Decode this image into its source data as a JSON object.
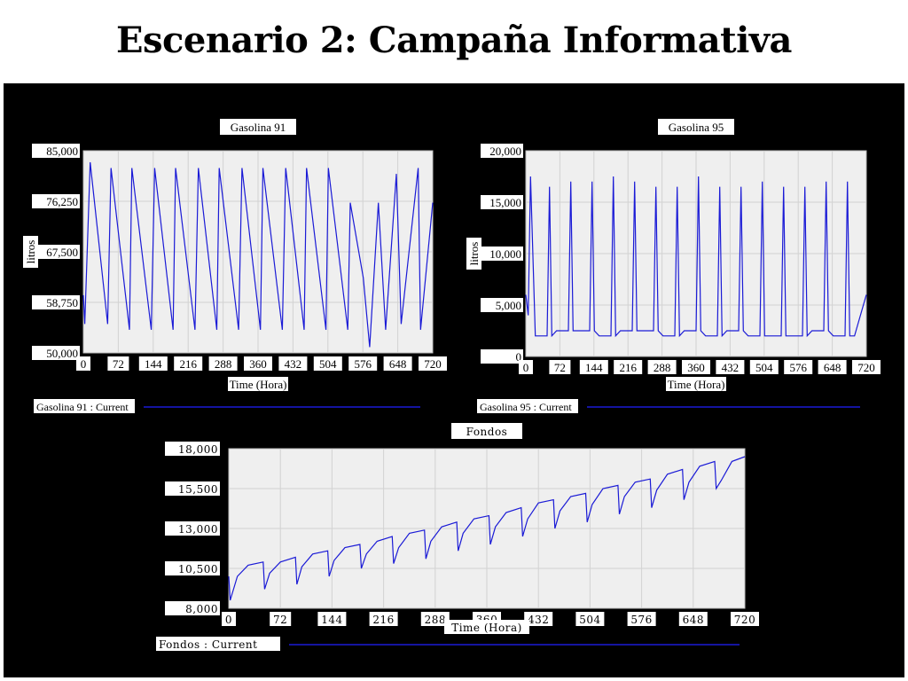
{
  "title": "Escenario 2: Campaña Informativa",
  "chart_data": [
    {
      "id": "g91",
      "type": "line",
      "title": "Gasolina 91",
      "xlabel": "Time (Hora)",
      "ylabel": "litros",
      "xlim": [
        0,
        720
      ],
      "ylim": [
        50000,
        85000
      ],
      "xticks": [
        "0",
        "72",
        "144",
        "216",
        "288",
        "360",
        "432",
        "504",
        "576",
        "648",
        "720"
      ],
      "yticks": [
        "85,000",
        "76,250",
        "67,500",
        "58,750",
        "50,000"
      ],
      "legend": "Gasolina 91 : Current",
      "series": [
        {
          "color": "#1a1ad6",
          "x": [
            0,
            3,
            14,
            50,
            57,
            95,
            100,
            140,
            147,
            185,
            190,
            230,
            237,
            275,
            280,
            320,
            327,
            365,
            370,
            410,
            417,
            455,
            460,
            500,
            505,
            545,
            550,
            577,
            590,
            608,
            623,
            645,
            655,
            690,
            695,
            720
          ],
          "y": [
            60000,
            55000,
            83000,
            55000,
            82000,
            54000,
            82000,
            54000,
            82000,
            54000,
            82000,
            54000,
            82000,
            54000,
            82000,
            54000,
            82000,
            54000,
            82000,
            54000,
            82000,
            54000,
            82000,
            54000,
            82000,
            54000,
            76000,
            63000,
            51000,
            76000,
            54000,
            81000,
            55000,
            82000,
            54000,
            76000
          ]
        }
      ]
    },
    {
      "id": "g95",
      "type": "line",
      "title": "Gasolina 95",
      "xlabel": "Time (Hora)",
      "ylabel": "litros",
      "xlim": [
        0,
        720
      ],
      "ylim": [
        0,
        20000
      ],
      "xticks": [
        "0",
        "72",
        "144",
        "216",
        "288",
        "360",
        "432",
        "504",
        "576",
        "648",
        "720"
      ],
      "yticks": [
        "20,000",
        "15,000",
        "10,000",
        "5,000",
        "0"
      ],
      "legend": "Gasolina 95 : Current",
      "series": [
        {
          "color": "#1a1ad6",
          "x": [
            0,
            5,
            10,
            20,
            45,
            50,
            55,
            65,
            90,
            95,
            100,
            110,
            135,
            140,
            145,
            155,
            180,
            185,
            190,
            200,
            225,
            230,
            235,
            245,
            270,
            275,
            280,
            290,
            315,
            320,
            325,
            335,
            360,
            365,
            370,
            380,
            405,
            410,
            415,
            425,
            450,
            455,
            460,
            470,
            495,
            500,
            505,
            515,
            540,
            545,
            550,
            560,
            585,
            590,
            595,
            605,
            630,
            635,
            640,
            650,
            675,
            680,
            685,
            695,
            720
          ],
          "y": [
            6000,
            4000,
            17500,
            2000,
            2000,
            16500,
            2000,
            2500,
            2500,
            17000,
            2500,
            2500,
            2500,
            17000,
            2500,
            2000,
            2000,
            17500,
            2000,
            2500,
            2500,
            17000,
            2500,
            2500,
            2500,
            16500,
            2500,
            2000,
            2000,
            16500,
            2000,
            2500,
            2500,
            17500,
            2500,
            2000,
            2000,
            16500,
            2000,
            2500,
            2500,
            16500,
            2500,
            2000,
            2000,
            17000,
            2000,
            2000,
            2000,
            16500,
            2000,
            2000,
            2000,
            16500,
            2000,
            2500,
            2500,
            17000,
            2500,
            2000,
            2000,
            17000,
            2000,
            2000,
            6000
          ]
        }
      ]
    },
    {
      "id": "fondos",
      "type": "line",
      "title": "Fondos",
      "xlabel": "Time (Hora)",
      "ylabel": "",
      "xlim": [
        0,
        720
      ],
      "ylim": [
        8000,
        18000
      ],
      "xticks": [
        "0",
        "72",
        "144",
        "216",
        "288",
        "360",
        "432",
        "504",
        "576",
        "648",
        "720"
      ],
      "yticks": [
        "18,000",
        "15,500",
        "13,000",
        "10,500",
        "8,000"
      ],
      "legend": "Fondos : Current",
      "series": [
        {
          "color": "#1a1ad6",
          "x": [
            0,
            2,
            12,
            27,
            48,
            50,
            57,
            72,
            93,
            95,
            102,
            117,
            138,
            140,
            147,
            162,
            183,
            185,
            192,
            207,
            228,
            230,
            237,
            252,
            273,
            275,
            282,
            297,
            318,
            320,
            327,
            342,
            363,
            365,
            372,
            387,
            408,
            410,
            417,
            432,
            453,
            455,
            462,
            477,
            498,
            500,
            507,
            522,
            543,
            545,
            552,
            567,
            588,
            590,
            597,
            612,
            633,
            635,
            642,
            657,
            678,
            680,
            687,
            702,
            720
          ],
          "y": [
            10000,
            8500,
            10000,
            10700,
            10900,
            9200,
            10200,
            10900,
            11200,
            9500,
            10600,
            11400,
            11600,
            10000,
            11000,
            11800,
            12000,
            10500,
            11400,
            12200,
            12500,
            10800,
            11800,
            12700,
            12900,
            11100,
            12200,
            13100,
            13400,
            11600,
            12700,
            13600,
            13800,
            12000,
            13100,
            14000,
            14300,
            12500,
            13600,
            14600,
            14800,
            13000,
            14100,
            15000,
            15200,
            13400,
            14500,
            15500,
            15700,
            13900,
            15000,
            15900,
            16100,
            14300,
            15400,
            16400,
            16700,
            14800,
            15900,
            16900,
            17200,
            15500,
            16000,
            17200,
            17500
          ]
        }
      ]
    }
  ]
}
